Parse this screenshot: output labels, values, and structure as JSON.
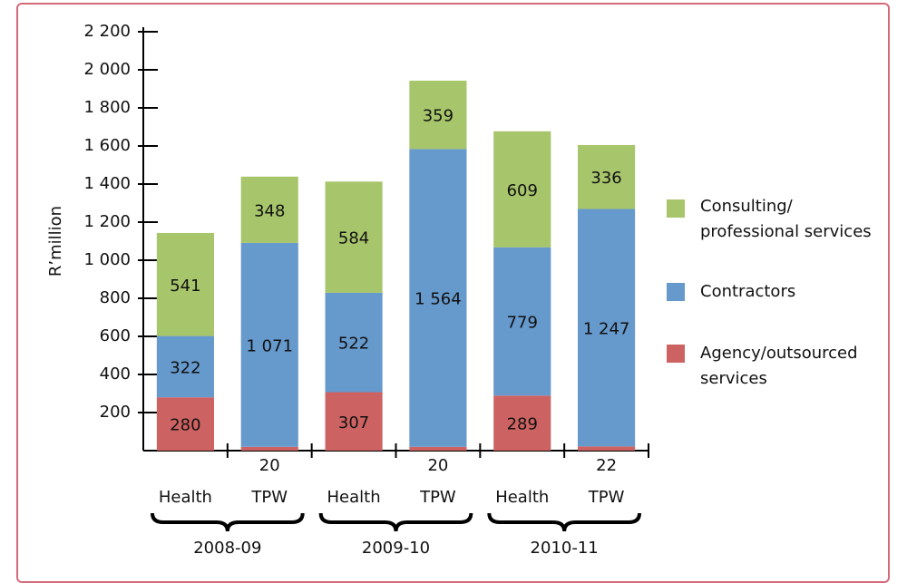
{
  "chart_data": {
    "type": "stacked-bar",
    "y_label": "R’million",
    "categories": [
      "Health",
      "TPW",
      "Health",
      "TPW",
      "Health",
      "TPW"
    ],
    "groups": [
      "2008-09",
      "2009-10",
      "2010-11"
    ],
    "series": [
      {
        "name": "Agency/outsourced services",
        "color": "#cd6262",
        "values": [
          280,
          20,
          307,
          20,
          289,
          22
        ]
      },
      {
        "name": "Contractors",
        "color": "#6699cc",
        "values": [
          322,
          1071,
          522,
          1564,
          779,
          1247
        ],
        "value_labels": [
          "322",
          "1 071",
          "522",
          "1 564",
          "779",
          "1 247"
        ]
      },
      {
        "name": "Consulting/ professional services",
        "color": "#a7c56b",
        "values": [
          541,
          348,
          584,
          359,
          609,
          336
        ]
      }
    ],
    "ylim": [
      0,
      2200
    ],
    "yticks": [
      200,
      400,
      600,
      800,
      {
        "value": 1000,
        "label": "1 000"
      },
      {
        "value": 1200,
        "label": "1 200"
      },
      {
        "value": 1400,
        "label": "1 400"
      },
      {
        "value": 1600,
        "label": "1 600"
      },
      {
        "value": 1800,
        "label": "1 800"
      },
      {
        "value": 2000,
        "label": "2 000"
      },
      {
        "value": 2200,
        "label": "2 200"
      }
    ],
    "legend": "right"
  }
}
